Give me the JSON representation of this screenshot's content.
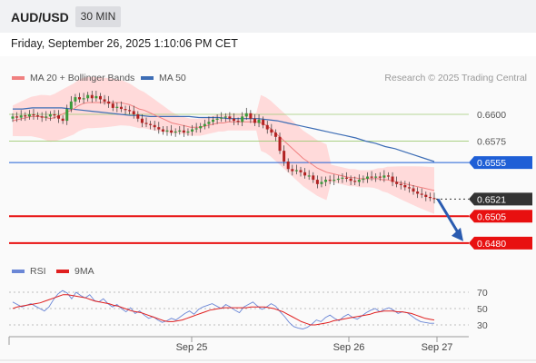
{
  "header": {
    "symbol": "AUD/USD",
    "timeframe": "30 MIN"
  },
  "timestamp": "Friday, September 26, 2025 1:10:06 PM CET",
  "legend": {
    "ma": "MA 20 + Bollinger Bands",
    "ma50": "MA 50",
    "rsi": "RSI",
    "rsi_ma": "9MA"
  },
  "credit": "Research © 2025 Trading Central",
  "colors": {
    "ma20": "#f08080",
    "ma50": "#3d6db5",
    "band": "#ffd4d4",
    "up": "#3a9a3a",
    "down": "#b22222",
    "rsi": "#6b87d6",
    "rsi_ma": "#e02020",
    "resistance_major": "#1f5fd6",
    "support": "#e81010",
    "target": "#7cbf4c"
  },
  "chart_data": {
    "type": "candlestick",
    "y_range": [
      0.6468,
      0.6622
    ],
    "price_levels": [
      {
        "value": 0.66,
        "label": "0.6600",
        "kind": "target"
      },
      {
        "value": 0.6575,
        "label": "0.6575",
        "kind": "target"
      },
      {
        "value": 0.6555,
        "label": "0.6555",
        "kind": "resistance"
      },
      {
        "value": 0.6521,
        "label": "0.6521",
        "kind": "last"
      },
      {
        "value": 0.6505,
        "label": "0.6505",
        "kind": "support"
      },
      {
        "value": 0.648,
        "label": "0.6480",
        "kind": "support"
      }
    ],
    "x_labels": [
      "Sep 25",
      "Sep 26",
      "Sep 27"
    ],
    "close": [
      0.6598,
      0.6597,
      0.6599,
      0.6598,
      0.66,
      0.6599,
      0.6598,
      0.6597,
      0.6598,
      0.66,
      0.6599,
      0.6596,
      0.6594,
      0.6605,
      0.6612,
      0.6616,
      0.6614,
      0.6615,
      0.6618,
      0.6615,
      0.6617,
      0.6614,
      0.6612,
      0.661,
      0.6606,
      0.6607,
      0.6605,
      0.6604,
      0.6603,
      0.66,
      0.6596,
      0.6592,
      0.6591,
      0.659,
      0.6588,
      0.6586,
      0.6584,
      0.6585,
      0.6583,
      0.6584,
      0.6585,
      0.6583,
      0.6584,
      0.6586,
      0.6587,
      0.6589,
      0.6591,
      0.6593,
      0.6595,
      0.6596,
      0.6597,
      0.6598,
      0.6596,
      0.6594,
      0.6593,
      0.6598,
      0.6601,
      0.6596,
      0.6592,
      0.6595,
      0.659,
      0.6586,
      0.6583,
      0.6579,
      0.6566,
      0.6556,
      0.6549,
      0.6547,
      0.6548,
      0.6546,
      0.6543,
      0.6543,
      0.6539,
      0.6535,
      0.6537,
      0.6539,
      0.6538,
      0.6539,
      0.654,
      0.6541,
      0.654,
      0.6538,
      0.6537,
      0.6539,
      0.654,
      0.6542,
      0.6541,
      0.6542,
      0.6541,
      0.6543,
      0.6542,
      0.6537,
      0.6535,
      0.6534,
      0.6532,
      0.6531,
      0.6528,
      0.6526,
      0.6525,
      0.6523,
      0.6522,
      0.6521
    ],
    "ma20": [
      0.6594,
      0.6595,
      0.6596,
      0.6597,
      0.6598,
      0.6598,
      0.6598,
      0.6597,
      0.6596,
      0.6597,
      0.6599,
      0.6601,
      0.6603,
      0.6605,
      0.6608,
      0.661,
      0.6611,
      0.6611,
      0.6611,
      0.6611,
      0.6611,
      0.6611,
      0.6611,
      0.6611,
      0.661,
      0.6609,
      0.6607,
      0.6605,
      0.6604,
      0.6602,
      0.66,
      0.6598,
      0.6596,
      0.6594,
      0.6592,
      0.6591,
      0.659,
      0.6589,
      0.6588,
      0.6588,
      0.6588,
      0.6589,
      0.659,
      0.6591,
      0.6592,
      0.6592,
      0.6593,
      0.6593,
      0.6593,
      0.6593,
      0.6593,
      0.6593,
      0.6593,
      0.6592,
      0.659,
      0.6587,
      0.6583,
      0.6579,
      0.6575,
      0.6571,
      0.6567,
      0.6563,
      0.6559,
      0.6556,
      0.6553,
      0.655,
      0.6548,
      0.6546,
      0.6545,
      0.6544,
      0.6543,
      0.6542,
      0.6541,
      0.6541,
      0.654,
      0.654,
      0.654,
      0.654,
      0.654,
      0.6539,
      0.6539,
      0.6538,
      0.6537,
      0.6536,
      0.6535,
      0.6534,
      0.6533,
      0.6532,
      0.6531,
      0.653,
      0.6529
    ],
    "ma50": [
      0.6605,
      0.6605,
      0.6606,
      0.6606,
      0.6606,
      0.6606,
      0.6605,
      0.6604,
      0.6603,
      0.6602,
      0.6601,
      0.66,
      0.6599,
      0.6599,
      0.6598,
      0.6598,
      0.6598,
      0.6598,
      0.6598,
      0.6597,
      0.6597,
      0.6597,
      0.6596,
      0.6596,
      0.6596,
      0.6596,
      0.6595,
      0.6594,
      0.6592,
      0.659,
      0.6588,
      0.6586,
      0.6584,
      0.6582,
      0.658,
      0.6578,
      0.6575,
      0.6573,
      0.657,
      0.6568,
      0.6565,
      0.6562,
      0.6559,
      0.6556
    ],
    "rsi_y_range": [
      20,
      80
    ],
    "rsi_levels": [
      70,
      50,
      30
    ],
    "rsi": [
      58,
      55,
      52,
      54,
      56,
      53,
      50,
      47,
      52,
      61,
      68,
      72,
      69,
      62,
      70,
      66,
      63,
      67,
      60,
      58,
      62,
      56,
      52,
      55,
      50,
      46,
      51,
      44,
      47,
      42,
      38,
      40,
      36,
      33,
      35,
      38,
      36,
      40,
      44,
      47,
      43,
      49,
      52,
      54,
      56,
      53,
      50,
      55,
      52,
      48,
      45,
      52,
      55,
      58,
      53,
      49,
      52,
      56,
      53,
      46,
      40,
      33,
      28,
      26,
      25,
      27,
      31,
      36,
      34,
      39,
      42,
      38,
      35,
      40,
      43,
      39,
      37,
      41,
      45,
      48,
      50,
      46,
      49,
      51,
      48,
      44,
      46,
      45,
      41,
      37,
      34,
      33,
      32,
      32
    ],
    "rsi_ma": [
      50,
      52,
      53,
      54,
      55,
      56,
      57,
      59,
      61,
      63,
      65,
      67,
      67,
      66,
      65,
      64,
      63,
      61,
      59,
      58,
      57,
      56,
      54,
      53,
      51,
      49,
      47,
      46,
      45,
      43,
      41,
      39,
      37,
      35,
      34,
      34,
      35,
      36,
      38,
      40,
      42,
      44,
      46,
      48,
      49,
      50,
      51,
      51,
      51,
      51,
      51,
      51,
      52,
      52,
      52,
      52,
      51,
      50,
      48,
      46,
      43,
      40,
      37,
      34,
      32,
      30,
      30,
      31,
      32,
      33,
      35,
      36,
      37,
      38,
      39,
      40,
      41,
      42,
      43,
      45,
      46,
      47,
      47,
      47,
      46,
      46,
      45,
      44,
      42,
      40,
      38,
      37,
      36
    ]
  }
}
